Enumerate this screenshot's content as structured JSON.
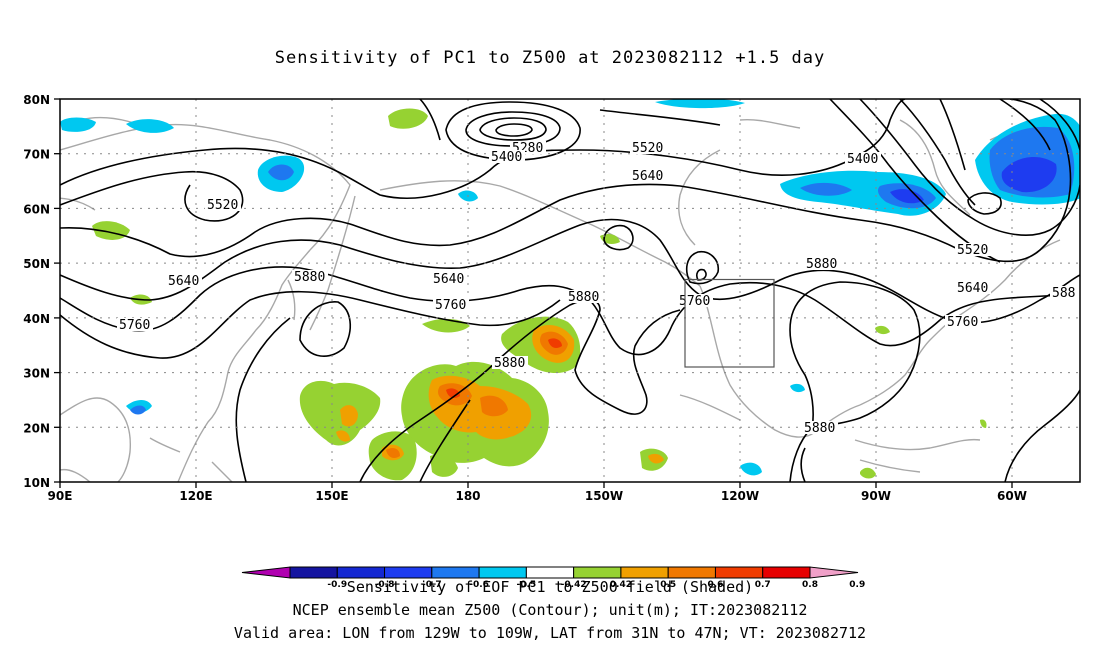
{
  "title": "Sensitivity of PC1 to Z500 at 2023082112 +1.5 day",
  "lat_labels": [
    "80N",
    "70N",
    "60N",
    "50N",
    "40N",
    "30N",
    "20N",
    "10N"
  ],
  "lon_labels": [
    "90E",
    "120E",
    "150E",
    "180",
    "150W",
    "120W",
    "90W",
    "60W"
  ],
  "colorbar": {
    "ticks": [
      "-0.9",
      "-0.8",
      "-0.7",
      "-0.6",
      "-0.5",
      "-0.42",
      "0.42",
      "0.5",
      "0.6",
      "0.7",
      "0.8",
      "0.9"
    ],
    "colors": [
      "#b000b0",
      "#1414a0",
      "#1428d2",
      "#1e3cf0",
      "#1e78f0",
      "#00c8f0",
      "#ffffff",
      "#96d232",
      "#f0a000",
      "#f07800",
      "#f03c00",
      "#e60000",
      "#f0a0c8"
    ]
  },
  "contour_labels": [
    "5280",
    "5400",
    "5400",
    "5520",
    "5520",
    "5520",
    "5640",
    "5640",
    "5640",
    "5640",
    "5760",
    "5760",
    "5760",
    "5760",
    "5880",
    "5880",
    "5880",
    "5880",
    "5880",
    "588"
  ],
  "footer": {
    "line1": "Sensitivity of EOF PC1 to Z500 field (Shaded)",
    "line2": "NCEP ensemble mean Z500 (Contour); unit(m); IT:2023082112",
    "line3": "Valid area: LON from 129W to 109W, LAT from 31N to 47N; VT: 2023082712"
  }
}
